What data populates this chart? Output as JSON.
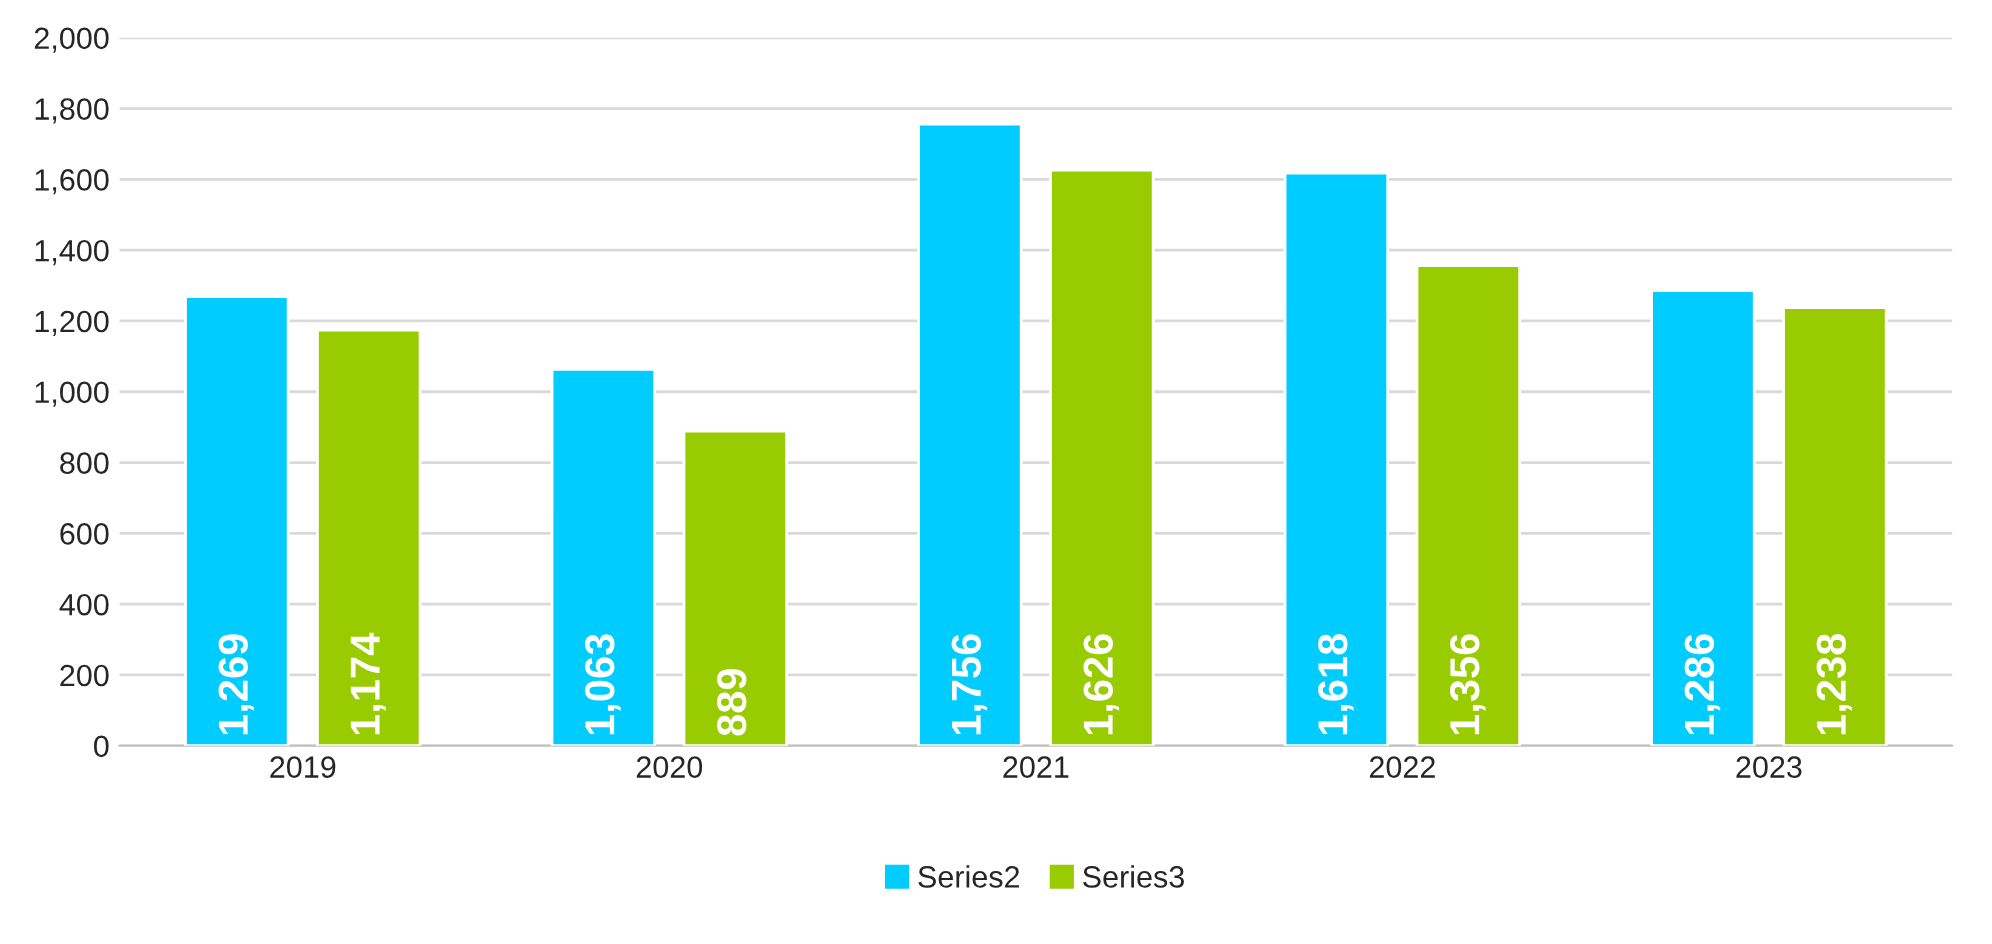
{
  "chart_data": {
    "type": "bar",
    "categories": [
      "2019",
      "2020",
      "2021",
      "2022",
      "2023"
    ],
    "series": [
      {
        "name": "Series2",
        "color": "#00ccff",
        "values": [
          1269,
          1063,
          1756,
          1618,
          1286
        ],
        "value_labels": [
          "1,269",
          "1,063",
          "1,756",
          "1,618",
          "1,286"
        ]
      },
      {
        "name": "Series3",
        "color": "#99cc00",
        "values": [
          1174,
          889,
          1626,
          1356,
          1238
        ],
        "value_labels": [
          "1,174",
          "889",
          "1,626",
          "1,356",
          "1,238"
        ]
      }
    ],
    "ylim": [
      0,
      2000
    ],
    "yticks": [
      0,
      {
        "value": 200,
        "label": "200"
      },
      {
        "value": 400,
        "label": "400"
      },
      {
        "value": 600,
        "label": "600"
      },
      {
        "value": 800,
        "label": "800"
      },
      {
        "value": 1000,
        "label": "1,000"
      },
      {
        "value": 1200,
        "label": "1,200"
      },
      {
        "value": 1400,
        "label": "1,400"
      },
      {
        "value": 1600,
        "label": "1,600"
      },
      {
        "value": 1800,
        "label": "1,800"
      },
      {
        "value": 2000,
        "label": "2,000"
      }
    ],
    "grid": "y",
    "legend": "bottom"
  }
}
